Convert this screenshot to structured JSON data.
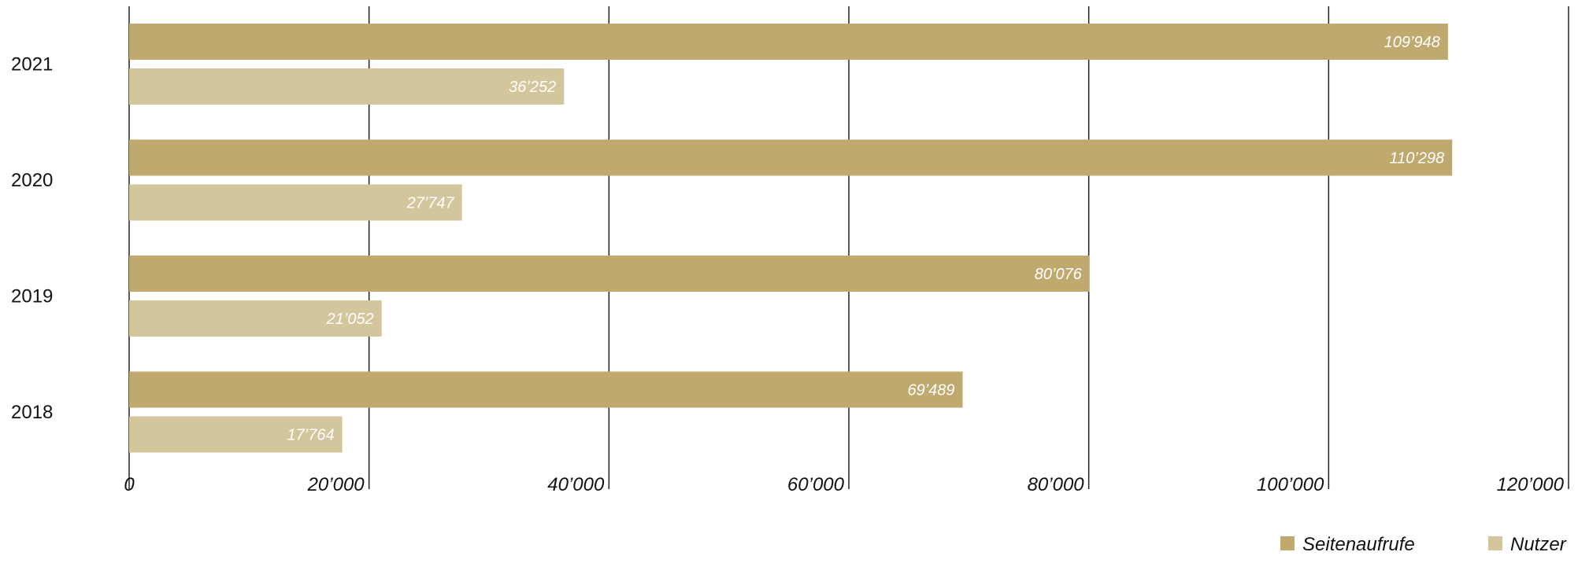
{
  "chart_data": {
    "type": "bar",
    "orientation": "horizontal",
    "categories": [
      "2021",
      "2020",
      "2019",
      "2018"
    ],
    "series": [
      {
        "name": "Seitenaufrufe",
        "color": "#BFA96E",
        "values": [
          109948,
          110298,
          80076,
          69489
        ],
        "labels": [
          "109’948",
          "110’298",
          "80’076",
          "69’489"
        ]
      },
      {
        "name": "Nutzer",
        "color": "#D3C59C",
        "values": [
          36252,
          27747,
          21052,
          17764
        ],
        "labels": [
          "36’252",
          "27’747",
          "21’052",
          "17’764"
        ]
      }
    ],
    "xlim": [
      0,
      120000
    ],
    "xticks": [
      0,
      20000,
      40000,
      60000,
      80000,
      100000,
      120000
    ],
    "xtick_labels": [
      "0",
      "20’000",
      "40’000",
      "60’000",
      "80’000",
      "100’000",
      "120’000"
    ],
    "grid": true,
    "legend_position": "bottom-right",
    "title": "",
    "xlabel": "",
    "ylabel": ""
  }
}
